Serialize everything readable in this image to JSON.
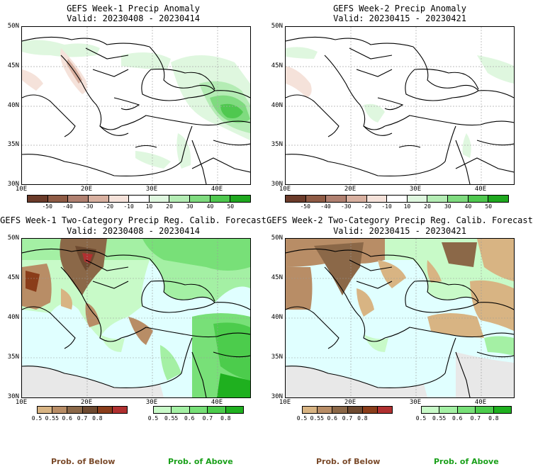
{
  "panels": [
    {
      "title": "GEFS Week-1 Precip Anomaly",
      "valid": "Valid: 20230408 - 20230414"
    },
    {
      "title": "GEFS Week-2 Precip Anomaly",
      "valid": "Valid: 20230415 - 20230421"
    },
    {
      "title": "GEFS Week-1 Two-Category Precip Reg. Calib. Forecast",
      "valid": "Valid: 20230408 - 20230414"
    },
    {
      "title": "GEFS Week-2 Two-Category Precip Reg. Calib. Forecast",
      "valid": "Valid: 20230415 - 20230421"
    }
  ],
  "lat_labels": [
    "50N",
    "45N",
    "40N",
    "35N",
    "30N"
  ],
  "lon_labels": [
    "10E",
    "20E",
    "30E",
    "40E"
  ],
  "anomaly_colorbar": {
    "labels": [
      "-50",
      "-40",
      "-30",
      "-20",
      "-10",
      "10",
      "20",
      "30",
      "40",
      "50"
    ],
    "colors": [
      "#6b3b2a",
      "#8f5b45",
      "#b08070",
      "#d8b0a0",
      "#f5e2da",
      "#ffffff",
      "#dff7df",
      "#b4ecb4",
      "#7fdb7f",
      "#4fc84f",
      "#1fa81f"
    ]
  },
  "below_colorbar": {
    "labels": [
      "0.5",
      "0.55",
      "0.6",
      "0.7",
      "0.8"
    ],
    "colors": [
      "#d8b483",
      "#b88d66",
      "#8b6848",
      "#6e4a30",
      "#8a3d1a",
      "#b03030"
    ]
  },
  "above_colorbar": {
    "labels": [
      "0.5",
      "0.55",
      "0.6",
      "0.7",
      "0.8"
    ],
    "colors": [
      "#c8fac8",
      "#a4f0a4",
      "#78e078",
      "#4ccc4c",
      "#1fb01f"
    ]
  },
  "footer": {
    "below_label": "Prob. of Below",
    "above_label": "Prob. of Above",
    "below_color": "#7a4a2a",
    "above_color": "#1aa01a"
  }
}
